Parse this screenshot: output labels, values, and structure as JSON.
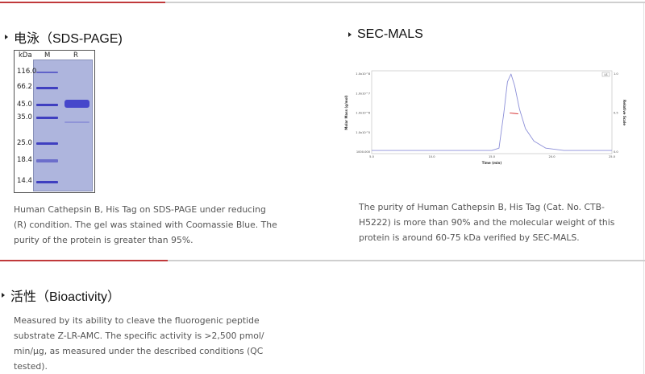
{
  "sds_page": {
    "title": "电泳（SDS-PAGE)",
    "gel": {
      "header_kda": "kDa",
      "lane_marker": "M",
      "lane_sample": "R",
      "markers": [
        "116.0",
        "66.2",
        "45.0",
        "35.0",
        "25.0",
        "18.4",
        "14.4"
      ]
    },
    "caption_lines": [
      "Human Cathepsin B, His Tag on SDS-PAGE under reducing",
      "(R) condition. The gel was stained with Coomassie Blue. The",
      "purity of the protein is greater than 95%."
    ]
  },
  "sec_mals": {
    "title": "SEC-MALS",
    "chart_data": {
      "type": "line",
      "xlabel": "Time (min)",
      "ylabel": "Molar Mass (g/mol)",
      "y2label": "Relative Scale",
      "x_ticks": [
        "5.0",
        "10.0",
        "15.0",
        "20.0",
        "25.0"
      ],
      "y_ticks": [
        "1000.000",
        "1.0x10^5",
        "1.0x10^6",
        "1.0x10^7",
        "1.0x10^8"
      ],
      "y2_ticks": [
        "0.0",
        "0.5",
        "1.0"
      ],
      "legend": "LS",
      "xlim": [
        5,
        25
      ],
      "y2lim": [
        0,
        1
      ],
      "series": [
        {
          "color": "#8c8fd8",
          "x": [
            5,
            15,
            15.6,
            16.0,
            16.3,
            16.6,
            16.9,
            17.3,
            17.8,
            18.5,
            19.5,
            21,
            25
          ],
          "y": [
            0.02,
            0.02,
            0.05,
            0.5,
            0.9,
            1.0,
            0.85,
            0.55,
            0.3,
            0.14,
            0.05,
            0.02,
            0.02
          ]
        },
        {
          "color": "#d43030",
          "x": [
            16.5,
            17.2
          ],
          "y_molar_mass_relative": [
            0.5,
            0.49
          ]
        }
      ]
    },
    "caption_lines": [
      "The purity of Human Cathepsin B, His Tag (Cat. No. CTB-",
      "H5222) is more than 90% and the molecular weight of this",
      "protein is around 60-75 kDa verified by SEC-MALS."
    ]
  },
  "bioactivity": {
    "title": "活性（Bioactivity）",
    "text_lines": [
      "Measured by its ability to cleave the fluorogenic peptide",
      "substrate Z-LR-AMC. The specific activity is >2,500 pmol/",
      "min/µg, as measured under the described conditions (QC",
      "tested)."
    ]
  },
  "colors": {
    "accent": "#c0393b",
    "divider": "#cfcfcf",
    "text": "#555555"
  }
}
